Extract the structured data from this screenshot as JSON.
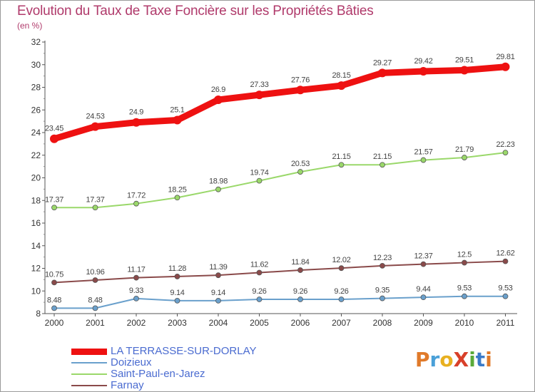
{
  "title": "Evolution du Taux de Taxe Foncière sur les Propriétés Bâties",
  "subtitle": "(en %)",
  "logo": {
    "text": "ProXiti",
    "colors": [
      "#e07a2a",
      "#4aa0d8",
      "#e8b020",
      "#d8402a",
      "#5aaa3a",
      "#3a7ac8",
      "#e07a2a"
    ]
  },
  "chart_data": {
    "type": "line",
    "title": "Evolution du Taux de Taxe Foncière sur les Propriétés Bâties",
    "ylabel": "(en %)",
    "xlabel": "",
    "x": [
      "2000",
      "2001",
      "2002",
      "2003",
      "2004",
      "2005",
      "2006",
      "2007",
      "2008",
      "2009",
      "2010",
      "2011"
    ],
    "ylim": [
      8,
      32
    ],
    "yticks": [
      8,
      10,
      12,
      14,
      16,
      18,
      20,
      22,
      24,
      26,
      28,
      30,
      32
    ],
    "grid": false,
    "legend_position": "bottom-left",
    "series": [
      {
        "name": "LA TERRASSE-SUR-DORLAY",
        "color": "#ee1111",
        "values": [
          23.45,
          24.53,
          24.9,
          25.1,
          26.9,
          27.33,
          27.76,
          28.15,
          29.27,
          29.42,
          29.51,
          29.81
        ],
        "labels": [
          "23.45",
          "24.53",
          "24.9",
          "25.1",
          "26.9",
          "27.33",
          "27.76",
          "28.15",
          "29.27",
          "29.42",
          "29.51",
          "29.81"
        ]
      },
      {
        "name": "Doizieux",
        "color": "#6aa0cc",
        "values": [
          8.48,
          8.48,
          9.33,
          9.14,
          9.14,
          9.26,
          9.26,
          9.26,
          9.35,
          9.44,
          9.53,
          9.53
        ],
        "labels": [
          "8.48",
          "8.48",
          "9.33",
          "9.14",
          "9.14",
          "9.26",
          "9.26",
          "9.26",
          "9.35",
          "9.44",
          "9.53",
          "9.53"
        ]
      },
      {
        "name": "Saint-Paul-en-Jarez",
        "color": "#9ad86a",
        "values": [
          17.37,
          17.37,
          17.72,
          18.25,
          18.98,
          19.74,
          20.53,
          21.15,
          21.15,
          21.57,
          21.79,
          22.23
        ],
        "labels": [
          "17.37",
          "17.37",
          "17.72",
          "18.25",
          "18.98",
          "19.74",
          "20.53",
          "21.15",
          "21.15",
          "21.57",
          "21.79",
          "22.23"
        ]
      },
      {
        "name": "Farnay",
        "color": "#8a4a4a",
        "values": [
          10.75,
          10.96,
          11.17,
          11.28,
          11.39,
          11.62,
          11.84,
          12.02,
          12.23,
          12.37,
          12.5,
          12.62
        ],
        "labels": [
          "10.75",
          "10.96",
          "11.17",
          "11.28",
          "11.39",
          "11.62",
          "11.84",
          "12.02",
          "12.23",
          "12.37",
          "12.5",
          "12.62"
        ]
      }
    ]
  }
}
